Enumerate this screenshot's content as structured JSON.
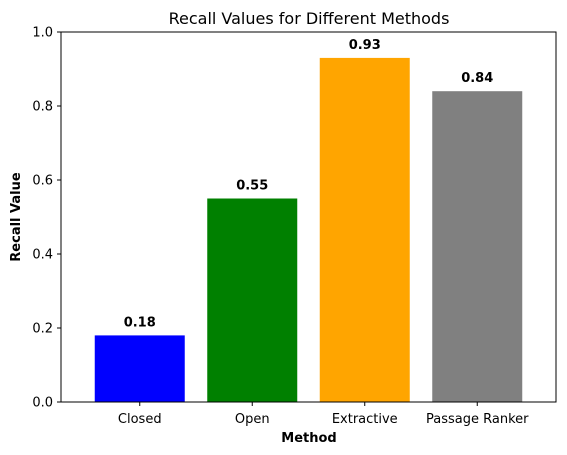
{
  "chart_data": {
    "type": "bar",
    "title": "Recall Values for Different Methods",
    "xlabel": "Method",
    "ylabel": "Recall Value",
    "categories": [
      "Closed",
      "Open",
      "Extractive",
      "Passage Ranker"
    ],
    "values": [
      0.18,
      0.55,
      0.93,
      0.84
    ],
    "value_labels": [
      "0.18",
      "0.55",
      "0.93",
      "0.84"
    ],
    "colors": [
      "#0000ff",
      "#008000",
      "#ffa500",
      "#808080"
    ],
    "ylim": [
      0,
      1.0
    ],
    "yticks": [
      0.0,
      0.2,
      0.4,
      0.6,
      0.8,
      1.0
    ],
    "ytick_labels": [
      "0.0",
      "0.2",
      "0.4",
      "0.6",
      "0.8",
      "1.0"
    ],
    "grid": false,
    "legend": false
  }
}
